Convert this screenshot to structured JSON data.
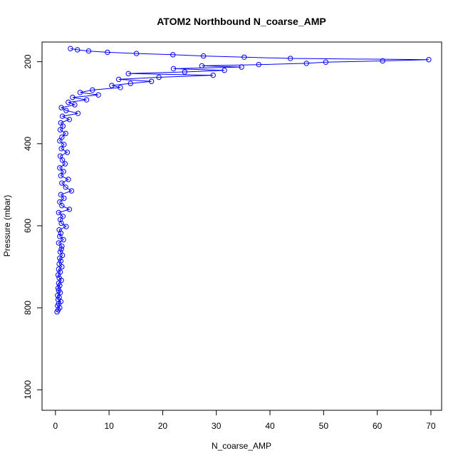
{
  "chart_data": {
    "type": "scatter",
    "title": "ATOM2 Northbound N_coarse_AMP",
    "xlabel": "N_coarse_AMP",
    "ylabel": "Pressure (mbar)",
    "xlim": [
      -2.5,
      72
    ],
    "ylim": [
      1050,
      152
    ],
    "y_reversed": true,
    "x_ticks": [
      0,
      10,
      20,
      30,
      40,
      50,
      60,
      70
    ],
    "y_ticks": [
      200,
      400,
      600,
      800,
      1000
    ],
    "grid": false,
    "legend": "none",
    "series_color": "#0000ff",
    "marker": "open-circle",
    "connected": true,
    "series": [
      {
        "x": [
          0.3,
          0.5,
          0.8,
          0.4,
          0.6,
          1.0,
          0.5,
          0.7,
          0.4,
          0.9,
          0.6,
          0.5,
          0.8,
          0.6,
          1.1,
          0.7,
          0.5,
          0.9,
          0.6,
          1.2,
          0.7,
          1.0,
          0.8,
          1.3,
          0.9,
          1.1,
          1.2,
          0.6,
          1.5,
          0.8,
          1.0,
          0.7,
          2.0,
          1.1,
          0.9,
          1.4,
          0.6,
          2.6,
          1.2,
          0.8,
          1.6,
          1.0,
          3.0,
          1.9,
          1.2,
          2.4,
          1.0,
          1.5,
          0.8,
          1.8,
          1.3,
          0.9,
          2.2,
          1.1,
          1.6,
          0.8,
          1.2,
          1.9,
          0.9,
          1.4,
          1.0,
          2.6,
          1.3,
          4.2,
          2.0,
          1.1,
          3.6,
          2.4,
          5.8,
          3.2,
          8.0,
          4.6,
          6.9,
          12.1,
          10.5,
          14.0,
          17.9,
          11.8,
          19.3,
          29.4,
          13.6,
          24.1,
          31.5,
          22.0,
          34.7,
          27.3,
          37.9,
          46.8,
          50.4,
          61.0,
          69.6,
          43.8,
          35.2,
          27.6,
          21.9,
          15.1,
          9.7,
          6.2,
          4.1,
          2.8
        ],
        "y": [
          810,
          805,
          800,
          795,
          790,
          785,
          780,
          775,
          770,
          763,
          758,
          752,
          746,
          740,
          733,
          727,
          720,
          713,
          706,
          700,
          693,
          686,
          679,
          672,
          664,
          657,
          650,
          642,
          634,
          626,
          618,
          610,
          602,
          594,
          585,
          577,
          568,
          560,
          551,
          542,
          533,
          524,
          515,
          506,
          496,
          487,
          478,
          468,
          459,
          449,
          440,
          430,
          421,
          412,
          402,
          393,
          384,
          375,
          366,
          357,
          349,
          341,
          333,
          326,
          319,
          312,
          305,
          299,
          293,
          287,
          281,
          275,
          269,
          263,
          258,
          253,
          248,
          243,
          238,
          233,
          229,
          225,
          221,
          217,
          213,
          210,
          207,
          204,
          201,
          198,
          195,
          192,
          189,
          186,
          183,
          180,
          177,
          174,
          171,
          168
        ]
      }
    ]
  }
}
